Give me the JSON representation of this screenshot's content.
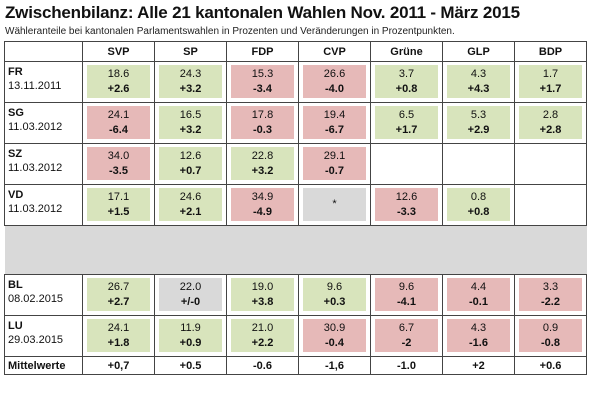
{
  "title": "Zwischenbilanz: Alle 21 kantonalen Wahlen Nov. 2011 - März 2015",
  "subtitle": "Wähleranteile bei kantonalen Parlamentswahlen in Prozenten und Veränderungen in Prozentpunkten.",
  "parties": [
    "SVP",
    "SP",
    "FDP",
    "CVP",
    "Grüne",
    "GLP",
    "BDP"
  ],
  "rows": [
    {
      "canton": "FR",
      "date": "13.11.2011",
      "cells": [
        {
          "v": "18.6",
          "c": "+2.6",
          "bg": "green"
        },
        {
          "v": "24.3",
          "c": "+3.2",
          "bg": "green"
        },
        {
          "v": "15.3",
          "c": "-3.4",
          "bg": "red"
        },
        {
          "v": "26.6",
          "c": "-4.0",
          "bg": "red"
        },
        {
          "v": "3.7",
          "c": "+0.8",
          "bg": "green"
        },
        {
          "v": "4.3",
          "c": "+4.3",
          "bg": "green"
        },
        {
          "v": "1.7",
          "c": "+1.7",
          "bg": "green"
        }
      ]
    },
    {
      "canton": "SG",
      "date": "11.03.2012",
      "cells": [
        {
          "v": "24.1",
          "c": "-6.4",
          "bg": "red"
        },
        {
          "v": "16.5",
          "c": "+3.2",
          "bg": "green"
        },
        {
          "v": "17.8",
          "c": "-0.3",
          "bg": "red"
        },
        {
          "v": "19.4",
          "c": "-6.7",
          "bg": "red"
        },
        {
          "v": "6.5",
          "c": "+1.7",
          "bg": "green"
        },
        {
          "v": "5.3",
          "c": "+2.9",
          "bg": "green"
        },
        {
          "v": "2.8",
          "c": "+2.8",
          "bg": "green"
        }
      ]
    },
    {
      "canton": "SZ",
      "date": "11.03.2012",
      "cells": [
        {
          "v": "34.0",
          "c": "-3.5",
          "bg": "red"
        },
        {
          "v": "12.6",
          "c": "+0.7",
          "bg": "green"
        },
        {
          "v": "22.8",
          "c": "+3.2",
          "bg": "green"
        },
        {
          "v": "29.1",
          "c": "-0.7",
          "bg": "red"
        },
        {
          "v": "",
          "c": "",
          "bg": "none"
        },
        {
          "v": "",
          "c": "",
          "bg": "none"
        },
        {
          "v": "",
          "c": "",
          "bg": "none"
        }
      ]
    },
    {
      "canton": "VD",
      "date": "11.03.2012",
      "cells": [
        {
          "v": "17.1",
          "c": "+1.5",
          "bg": "green"
        },
        {
          "v": "24.6",
          "c": "+2.1",
          "bg": "green"
        },
        {
          "v": "34.9",
          "c": "-4.9",
          "bg": "red"
        },
        {
          "v": "*",
          "c": "",
          "bg": "gray"
        },
        {
          "v": "12.6",
          "c": "-3.3",
          "bg": "red"
        },
        {
          "v": "0.8",
          "c": "+0.8",
          "bg": "green"
        },
        {
          "v": "",
          "c": "",
          "bg": "none"
        }
      ]
    },
    {
      "canton": "BL",
      "date": "08.02.2015",
      "cells": [
        {
          "v": "26.7",
          "c": "+2.7",
          "bg": "green"
        },
        {
          "v": "22.0",
          "c": "+/-0",
          "bg": "gray"
        },
        {
          "v": "19.0",
          "c": "+3.8",
          "bg": "green"
        },
        {
          "v": "9.6",
          "c": "+0.3",
          "bg": "green"
        },
        {
          "v": "9.6",
          "c": "-4.1",
          "bg": "red"
        },
        {
          "v": "4.4",
          "c": "-0.1",
          "bg": "red"
        },
        {
          "v": "3.3",
          "c": "-2.2",
          "bg": "red"
        }
      ]
    },
    {
      "canton": "LU",
      "date": "29.03.2015",
      "cells": [
        {
          "v": "24.1",
          "c": "+1.8",
          "bg": "green"
        },
        {
          "v": "11.9",
          "c": "+0.9",
          "bg": "green"
        },
        {
          "v": "21.0",
          "c": "+2.2",
          "bg": "green"
        },
        {
          "v": "30.9",
          "c": "-0.4",
          "bg": "red"
        },
        {
          "v": "6.7",
          "c": "-2",
          "bg": "red"
        },
        {
          "v": "4.3",
          "c": "-1.6",
          "bg": "red"
        },
        {
          "v": "0.9",
          "c": "-0.8",
          "bg": "red"
        }
      ]
    }
  ],
  "mean": {
    "label": "Mittelwerte",
    "values": [
      "+0,7",
      "+0.5",
      "-0.6",
      "-1,6",
      "-1.0",
      "+2",
      "+0.6"
    ]
  },
  "colors": {
    "green": "#d8e4bc",
    "red": "#e6b9b8",
    "gray": "#d9d9d9"
  }
}
